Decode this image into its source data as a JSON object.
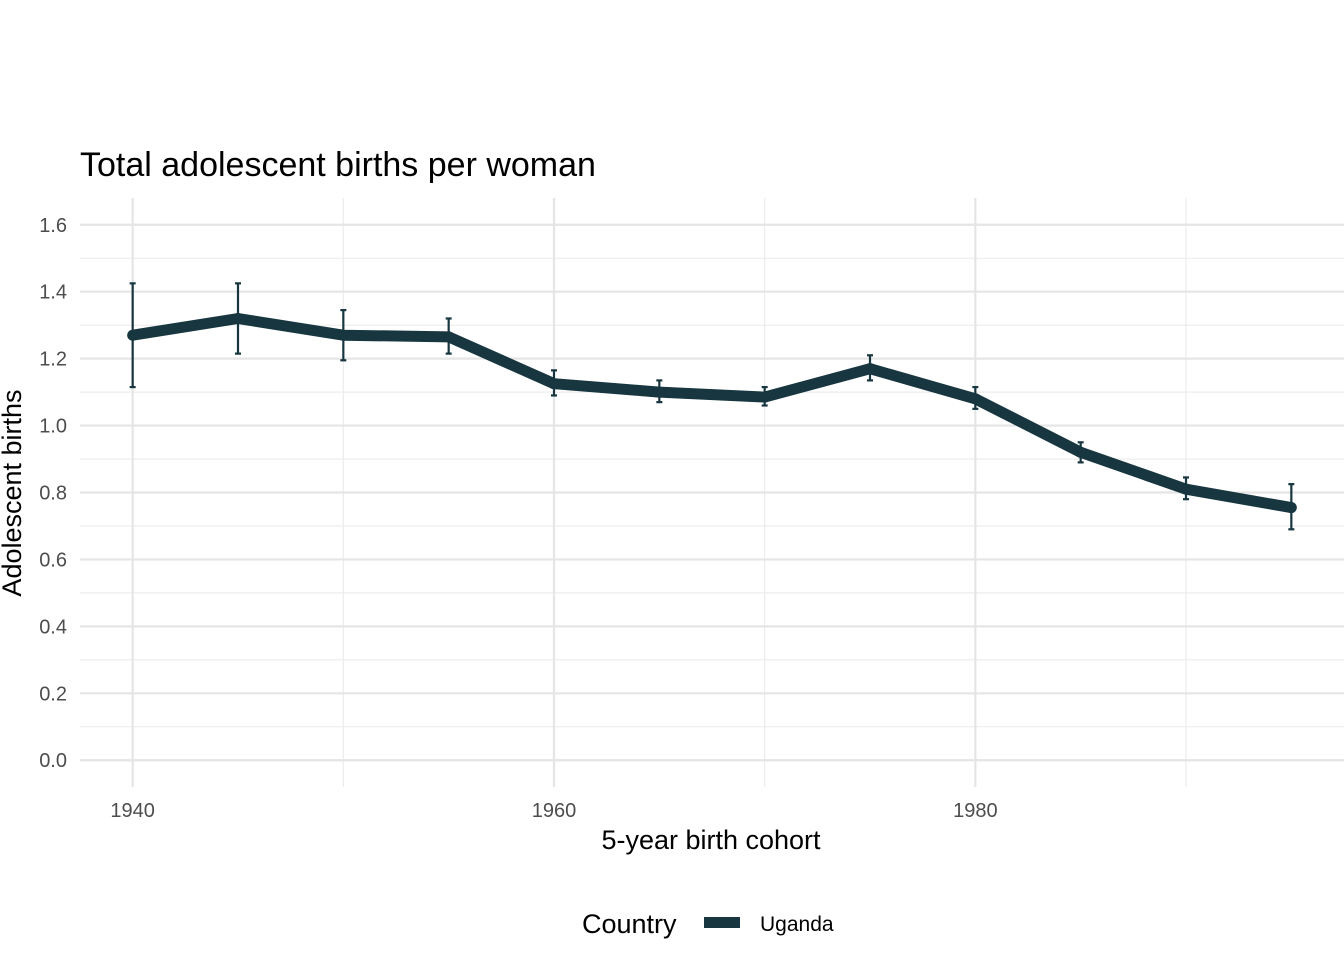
{
  "chart_data": {
    "type": "line",
    "title": "Total adolescent births per woman",
    "xlabel": "5-year birth cohort",
    "ylabel": "Adolescent births",
    "xlim": [
      1937.5,
      1997.5
    ],
    "ylim": [
      -0.08,
      1.68
    ],
    "x_ticks": [
      1940,
      1960,
      1980
    ],
    "x_tick_labels": [
      "1940",
      "1960",
      "1980"
    ],
    "y_ticks": [
      0.0,
      0.2,
      0.4,
      0.6,
      0.8,
      1.0,
      1.2,
      1.4,
      1.6
    ],
    "y_tick_labels": [
      "0.0",
      "0.2",
      "0.4",
      "0.6",
      "0.8",
      "1.0",
      "1.2",
      "1.4",
      "1.6"
    ],
    "grid": true,
    "legend": {
      "title": "Country",
      "position": "bottom"
    },
    "series": [
      {
        "name": "Uganda",
        "color": "#17363f",
        "x": [
          1940,
          1945,
          1950,
          1955,
          1960,
          1965,
          1970,
          1975,
          1980,
          1985,
          1990,
          1995
        ],
        "y": [
          1.27,
          1.32,
          1.27,
          1.265,
          1.125,
          1.1,
          1.085,
          1.17,
          1.08,
          0.92,
          0.81,
          0.755
        ],
        "y_lower": [
          1.115,
          1.215,
          1.195,
          1.215,
          1.09,
          1.07,
          1.06,
          1.135,
          1.05,
          0.89,
          0.78,
          0.69
        ],
        "y_upper": [
          1.425,
          1.425,
          1.345,
          1.32,
          1.165,
          1.135,
          1.115,
          1.21,
          1.115,
          0.95,
          0.845,
          0.825
        ]
      }
    ]
  }
}
